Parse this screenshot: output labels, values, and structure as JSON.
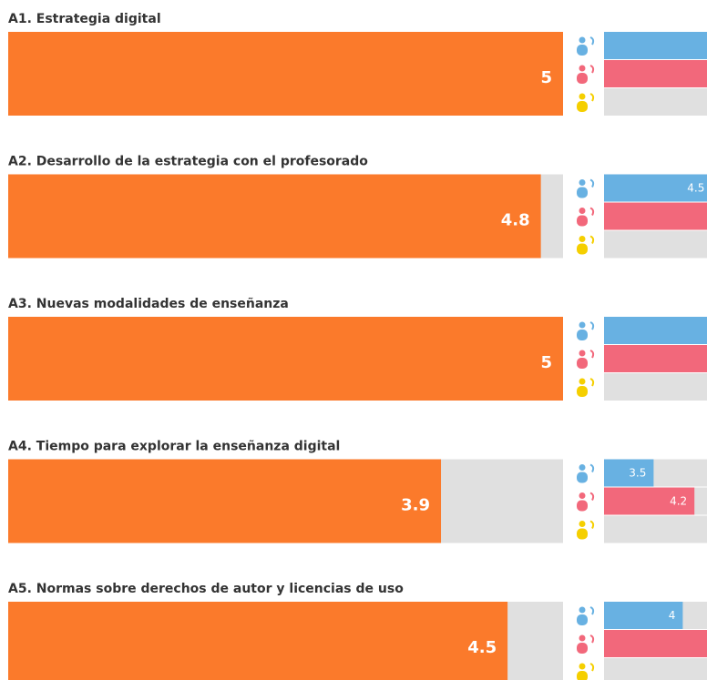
{
  "sections": [
    {
      "title": "A1. Estrategia digital",
      "value": 5,
      "groups": [
        5,
        5
      ]
    },
    {
      "title": "A2. Desarrollo de la estrategia con el profesorado",
      "value": 4.8,
      "groups": [
        4.5,
        5
      ]
    },
    {
      "title": "A3. Nuevas modalidades de enseñanza",
      "value": 5,
      "groups": [
        5,
        5
      ]
    },
    {
      "title": "A4. Tiempo para explorar la enseñanza digital",
      "value": 3.9,
      "groups": [
        3.5,
        4.2
      ]
    },
    {
      "title": "A5. Normas sobre derechos de autor y licencias de uso",
      "value": 4.5,
      "groups": [
        4,
        5
      ]
    }
  ]
}
